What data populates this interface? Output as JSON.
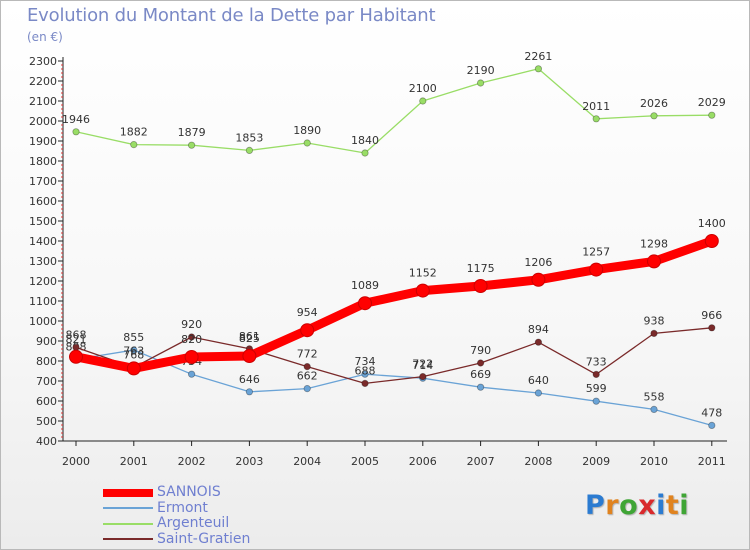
{
  "chart_data": {
    "type": "line",
    "title": "Evolution du Montant de la Dette par Habitant",
    "subtitle": "(en €)",
    "categories": [
      "2000",
      "2001",
      "2002",
      "2003",
      "2004",
      "2005",
      "2006",
      "2007",
      "2008",
      "2009",
      "2010",
      "2011"
    ],
    "yticks": [
      400,
      500,
      600,
      700,
      800,
      900,
      1000,
      1100,
      1200,
      1300,
      1400,
      1500,
      1600,
      1700,
      1800,
      1900,
      2000,
      2100,
      2200,
      2300
    ],
    "ylim": [
      400,
      2300
    ],
    "grid": false,
    "legend_position": "bottom-left",
    "series": [
      {
        "name": "SANNOIS",
        "color": "#ff0000",
        "values": [
          821,
          763,
          820,
          825,
          954,
          1089,
          1152,
          1175,
          1206,
          1257,
          1298,
          1400
        ]
      },
      {
        "name": "Ermont",
        "color": "#6aa3d6",
        "values": [
          808,
          855,
          734,
          646,
          662,
          734,
          714,
          669,
          640,
          599,
          558,
          478
        ]
      },
      {
        "name": "Argenteuil",
        "color": "#99dd66",
        "values": [
          1946,
          1882,
          1879,
          1853,
          1890,
          1840,
          2100,
          2190,
          2261,
          2011,
          2026,
          2029
        ]
      },
      {
        "name": "Saint-Gratien",
        "color": "#7a2a2a",
        "values": [
          868,
          768,
          920,
          861,
          772,
          688,
          722,
          790,
          894,
          733,
          938,
          966
        ]
      }
    ]
  },
  "logo": {
    "letters": [
      "P",
      "r",
      "o",
      "x",
      "i",
      "t",
      "i"
    ],
    "colors": [
      "#2b7bd1",
      "#e0831f",
      "#3fa535",
      "#d9292c",
      "#2b7bd1",
      "#e0831f",
      "#3fa535"
    ]
  }
}
